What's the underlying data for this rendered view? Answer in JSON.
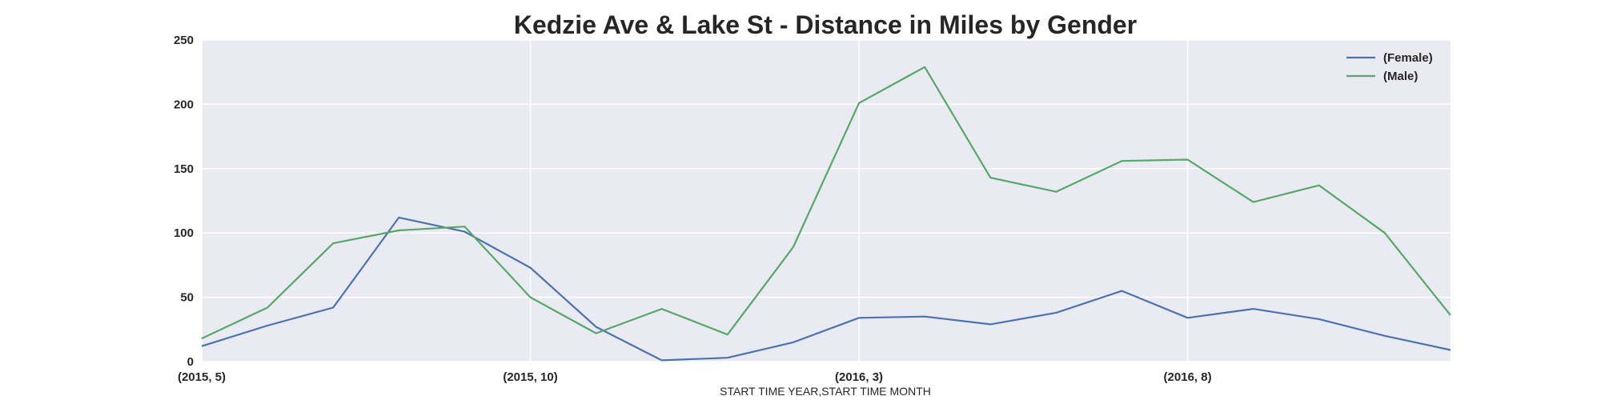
{
  "chart_data": {
    "type": "line",
    "title": "Kedzie Ave & Lake St - Distance in Miles by Gender",
    "xlabel": "START TIME YEAR,START TIME MONTH",
    "ylabel": "",
    "x": [
      "(2015, 5)",
      "(2015, 6)",
      "(2015, 7)",
      "(2015, 8)",
      "(2015, 9)",
      "(2015, 10)",
      "(2015, 11)",
      "(2015, 12)",
      "(2016, 1)",
      "(2016, 2)",
      "(2016, 3)",
      "(2016, 4)",
      "(2016, 5)",
      "(2016, 6)",
      "(2016, 7)",
      "(2016, 8)",
      "(2016, 9)",
      "(2016, 10)",
      "(2016, 11)",
      "(2016, 12)"
    ],
    "x_ticks": [
      {
        "index": 0,
        "label": "(2015, 5)"
      },
      {
        "index": 5,
        "label": "(2015, 10)"
      },
      {
        "index": 10,
        "label": "(2016, 3)"
      },
      {
        "index": 15,
        "label": "(2016, 8)"
      }
    ],
    "ylim": [
      0,
      250
    ],
    "y_ticks": [
      0,
      50,
      100,
      150,
      200,
      250
    ],
    "grid": true,
    "legend_position": "top-right",
    "series": [
      {
        "name": "(Female)",
        "color": "#4c72b0",
        "values": [
          12,
          28,
          42,
          112,
          101,
          73,
          27,
          1,
          3,
          15,
          34,
          35,
          29,
          38,
          55,
          34,
          41,
          33,
          20,
          9
        ]
      },
      {
        "name": "(Male)",
        "color": "#55a868",
        "values": [
          18,
          42,
          92,
          102,
          105,
          50,
          22,
          41,
          21,
          89,
          201,
          229,
          143,
          132,
          156,
          157,
          124,
          137,
          100,
          36
        ]
      }
    ],
    "colors": {
      "plot_background": "#eaeaf2",
      "grid": "#ffffff"
    }
  }
}
